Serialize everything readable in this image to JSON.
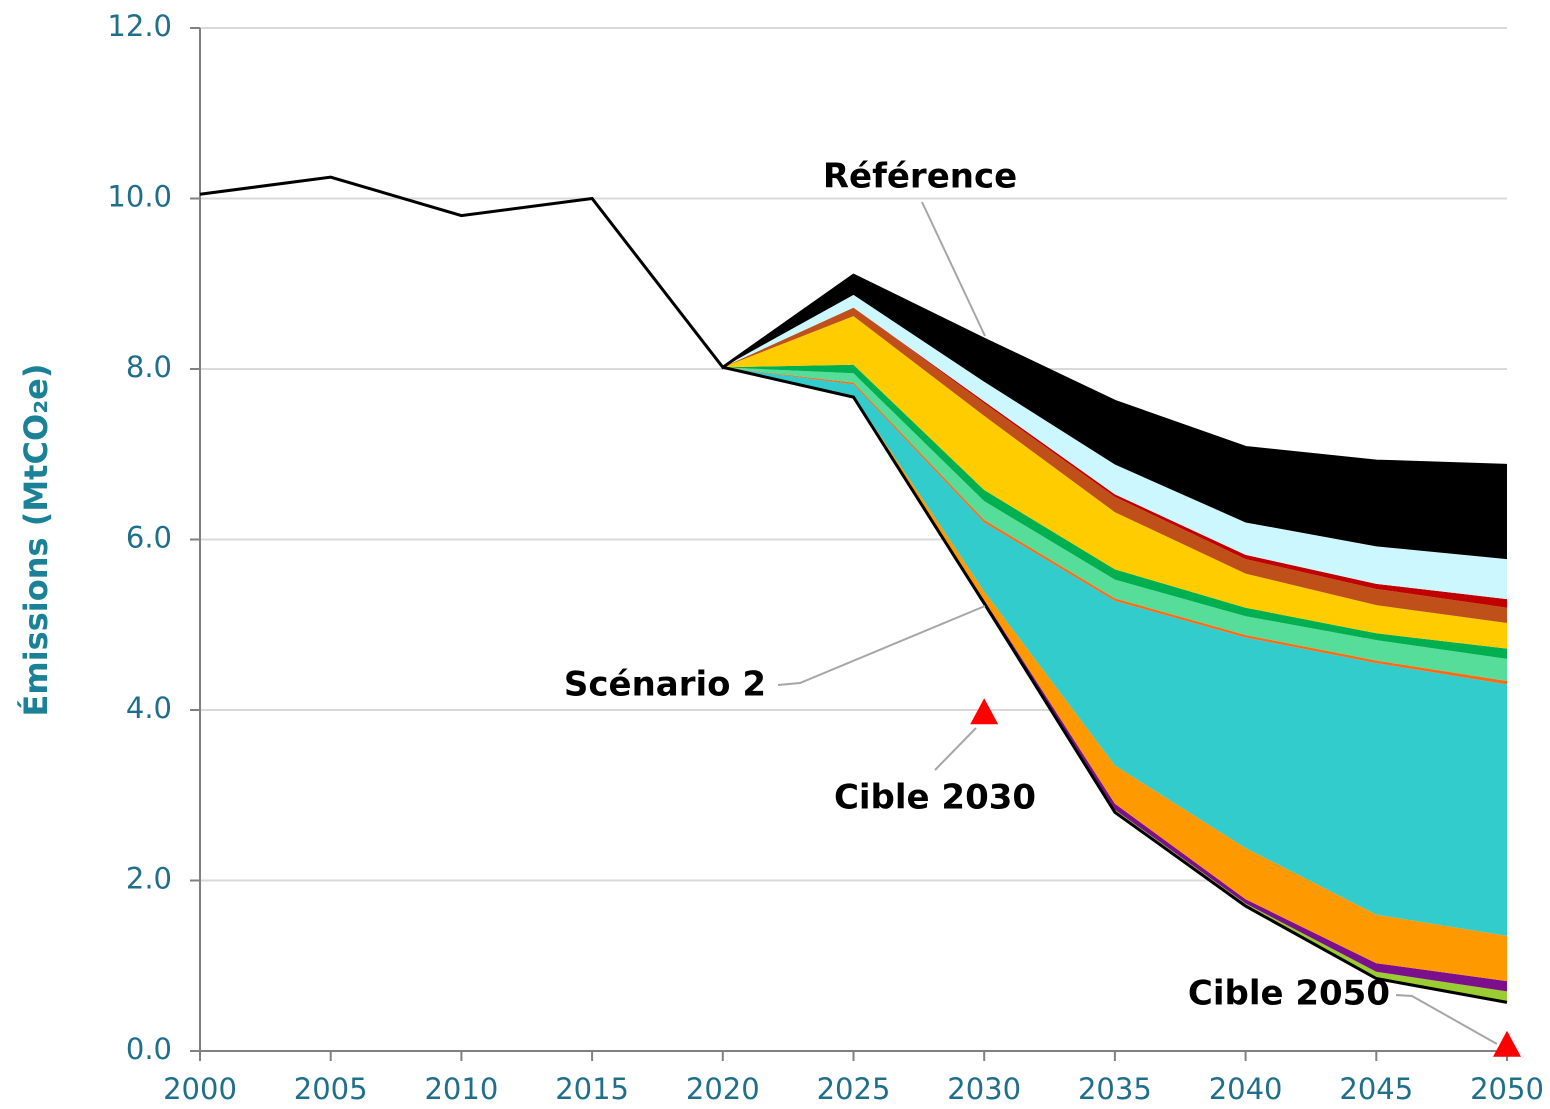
{
  "chart_data": {
    "type": "area",
    "ylabel": "Émissions (MtCO₂e)",
    "x": [
      2000,
      2005,
      2010,
      2015,
      2020,
      2025,
      2030,
      2035,
      2040,
      2045,
      2050
    ],
    "xlim": [
      2000,
      2050
    ],
    "xticks": [
      2000,
      2005,
      2010,
      2015,
      2020,
      2025,
      2030,
      2035,
      2040,
      2045,
      2050
    ],
    "ylim": [
      0,
      12
    ],
    "yticks": [
      {
        "value": 0,
        "label": "0.0"
      },
      {
        "value": 2,
        "label": "2.0"
      },
      {
        "value": 4,
        "label": "4.0"
      },
      {
        "value": 6,
        "label": "6.0"
      },
      {
        "value": 8,
        "label": "8.0"
      },
      {
        "value": 10,
        "label": "10.0"
      },
      {
        "value": 12,
        "label": "12.0"
      }
    ],
    "grid": true,
    "lines": [
      {
        "name": "Référence",
        "color": "#000000",
        "values": [
          10.05,
          10.25,
          9.8,
          10.0,
          8.02,
          9.1,
          8.35,
          7.62,
          7.08,
          6.92,
          6.87
        ]
      },
      {
        "name": "Scénario 2",
        "color": "#000000",
        "values": [
          null,
          null,
          null,
          null,
          8.02,
          7.67,
          5.25,
          2.8,
          1.7,
          0.85,
          0.57
        ]
      }
    ],
    "series": [
      {
        "color": "#9acd32",
        "values": [
          null,
          null,
          null,
          null,
          0,
          0,
          0.02,
          0.03,
          0.03,
          0.08,
          0.13
        ]
      },
      {
        "color": "#7b0f8c",
        "values": [
          null,
          null,
          null,
          null,
          0,
          0,
          0.02,
          0.07,
          0.05,
          0.1,
          0.12
        ]
      },
      {
        "color": "#ff9900",
        "values": [
          null,
          null,
          null,
          null,
          0,
          0.02,
          0.1,
          0.45,
          0.6,
          0.57,
          0.53
        ]
      },
      {
        "color": "#33cccc",
        "values": [
          null,
          null,
          null,
          null,
          0,
          0.13,
          0.81,
          1.93,
          2.47,
          2.95,
          2.95
        ]
      },
      {
        "color": "#ff6a13",
        "values": [
          null,
          null,
          null,
          null,
          0,
          0.02,
          0.03,
          0.03,
          0.03,
          0.03,
          0.04
        ]
      },
      {
        "color": "#55dd99",
        "values": [
          null,
          null,
          null,
          null,
          0,
          0.11,
          0.22,
          0.22,
          0.22,
          0.24,
          0.26
        ]
      },
      {
        "color": "#00b050",
        "values": [
          null,
          null,
          null,
          null,
          0,
          0.1,
          0.13,
          0.12,
          0.1,
          0.08,
          0.12
        ]
      },
      {
        "color": "#ffcc00",
        "values": [
          null,
          null,
          null,
          null,
          0,
          0.57,
          0.87,
          0.67,
          0.4,
          0.33,
          0.3
        ]
      },
      {
        "color": "#c0501a",
        "values": [
          null,
          null,
          null,
          null,
          0,
          0.1,
          0.15,
          0.18,
          0.17,
          0.19,
          0.18
        ]
      },
      {
        "color": "#c00000",
        "values": [
          null,
          null,
          null,
          null,
          0,
          0,
          0.02,
          0.03,
          0.05,
          0.06,
          0.1
        ]
      },
      {
        "color": "#ccf7ff",
        "values": [
          null,
          null,
          null,
          null,
          0,
          0.15,
          0.23,
          0.35,
          0.38,
          0.44,
          0.47
        ]
      },
      {
        "color": "#000000",
        "values": [
          null,
          null,
          null,
          null,
          0,
          0.23,
          0.5,
          0.74,
          0.88,
          1.0,
          1.1
        ]
      }
    ],
    "markers": [
      {
        "label": "Cible 2030",
        "x": 2030,
        "y": 3.95,
        "color": "#ff0000"
      },
      {
        "label": "Cible 2050",
        "x": 2050,
        "y": 0.05,
        "color": "#ff0000"
      }
    ]
  }
}
